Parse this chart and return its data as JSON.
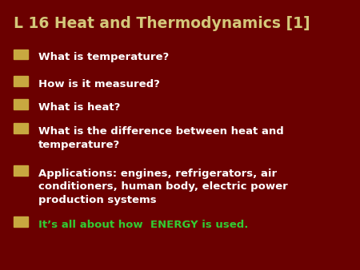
{
  "title": "L 16 Heat and Thermodynamics [1]",
  "title_color": "#D4C87A",
  "background_color": "#6B0000",
  "bullet_color": "#C8A840",
  "bullet_text_color": "#FFFFFF",
  "last_bullet_text_color": "#33CC33",
  "bullets": [
    "What is temperature?",
    "How is it measured?",
    "What is heat?",
    "What is the difference between heat and\ntemperature?",
    "Applications: engines, refrigerators, air\nconditioners, human body, electric power\nproduction systems",
    "It’s all about how  ENERGY is used."
  ],
  "bullet_colors_text": [
    "#FFFFFF",
    "#FFFFFF",
    "#FFFFFF",
    "#FFFFFF",
    "#FFFFFF",
    "#33CC33"
  ],
  "figsize": [
    4.5,
    3.38
  ],
  "dpi": 100
}
